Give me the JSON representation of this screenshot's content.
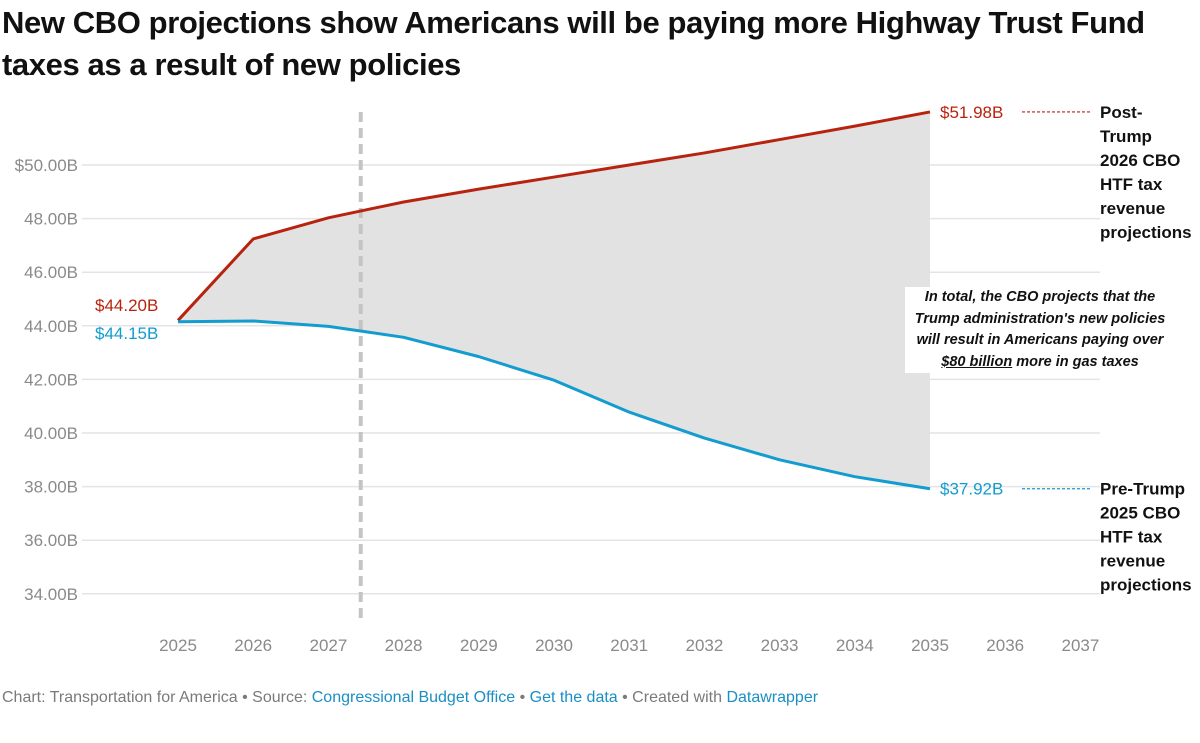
{
  "title": "New CBO projections show Americans will be paying more Highway Trust Fund taxes as a result of new policies",
  "chart_data": {
    "type": "area",
    "title": "New CBO projections show Americans will be paying more Highway Trust Fund taxes as a result of new policies",
    "xlabel": "",
    "ylabel": "",
    "x_ticks": [
      "2025",
      "2026",
      "2027",
      "2028",
      "2029",
      "2030",
      "2031",
      "2032",
      "2033",
      "2034",
      "2035",
      "2036",
      "2037"
    ],
    "xlim": [
      2025,
      2037
    ],
    "ylim": [
      33,
      52.5
    ],
    "y_ticks": [
      {
        "value": 50,
        "label": "$50.00B"
      },
      {
        "value": 48,
        "label": "48.00B"
      },
      {
        "value": 46,
        "label": "46.00B"
      },
      {
        "value": 44,
        "label": "44.00B"
      },
      {
        "value": 42,
        "label": "42.00B"
      },
      {
        "value": 40,
        "label": "40.00B"
      },
      {
        "value": 38,
        "label": "38.00B"
      },
      {
        "value": 36,
        "label": "36.00B"
      },
      {
        "value": 34,
        "label": "34.00B"
      }
    ],
    "grid": true,
    "reference_line_x": 2027.43,
    "x": [
      2025,
      2026,
      2027,
      2028,
      2029,
      2030,
      2031,
      2032,
      2033,
      2034,
      2035
    ],
    "series": [
      {
        "name": "Post-Trump 2026 CBO HTF tax revenue projections",
        "color": "#b8230f",
        "values": [
          44.2,
          47.24,
          48.03,
          48.62,
          49.1,
          49.55,
          50.0,
          50.45,
          50.95,
          51.45,
          51.98
        ],
        "start_label": "$44.20B",
        "end_label": "$51.98B",
        "label_lines": [
          "Post-",
          "Trump",
          "2026 CBO",
          "HTF tax",
          "revenue",
          "projections"
        ]
      },
      {
        "name": "Pre-Trump 2025 CBO HTF tax revenue projections",
        "color": "#129ccf",
        "values": [
          44.15,
          44.18,
          43.98,
          43.57,
          42.85,
          41.97,
          40.78,
          39.81,
          39.0,
          38.37,
          37.92
        ],
        "start_label": "$44.15B",
        "end_label": "$37.92B",
        "label_lines": [
          "Pre-Trump",
          "2025 CBO",
          "HTF tax",
          "revenue",
          "projections"
        ]
      }
    ],
    "fill_color": "#e2e2e2",
    "annotation": {
      "before": "In total, the CBO projects that the Trump administration's new policies will result in Americans paying over ",
      "emphasis": "$80 billion",
      "after": " more in gas taxes"
    }
  },
  "footer": {
    "chart_credit": "Chart: Transportation for America",
    "sep1": " • Source: ",
    "source_link": "Congressional Budget Office",
    "sep2": " • ",
    "data_link": "Get the data",
    "sep3": " • Created with ",
    "tool_link": "Datawrapper"
  }
}
